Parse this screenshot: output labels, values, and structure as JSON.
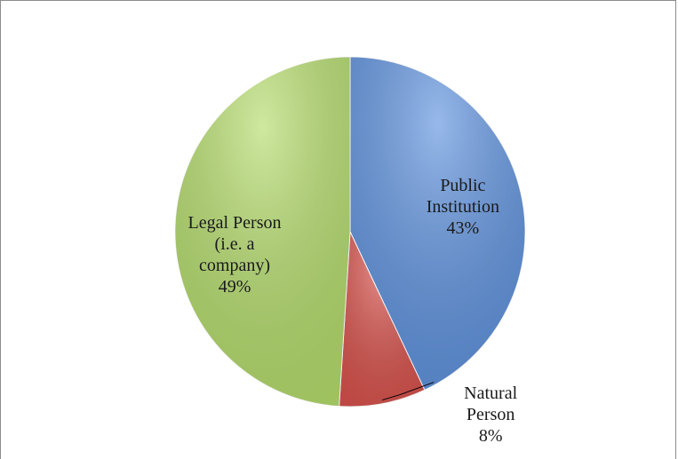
{
  "chart_data": {
    "type": "pie",
    "categories": [
      "Public Institution",
      "Natural Person",
      "Legal Person (i.e. a company)"
    ],
    "values": [
      43,
      8,
      49
    ],
    "value_labels": [
      "43%",
      "8%",
      "49%"
    ],
    "colors": [
      "#5f93df",
      "#d9524c",
      "#b5dd6c"
    ]
  }
}
